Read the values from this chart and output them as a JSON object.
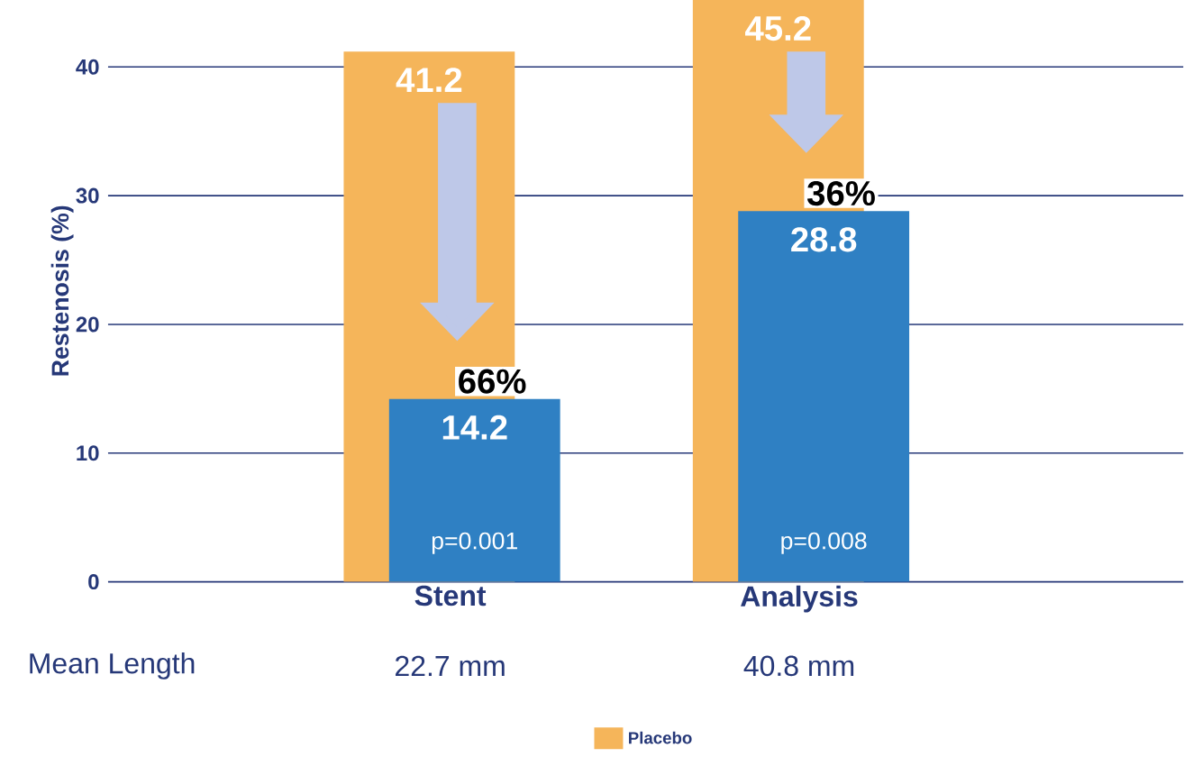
{
  "chart_data": {
    "type": "bar",
    "ylabel": "Restenosis (%)",
    "categories": [
      "Stent",
      "Analysis"
    ],
    "series": [
      {
        "name": "Placebo",
        "color": "#f5b55a",
        "values": [
          41.2,
          45.2
        ]
      },
      {
        "color": "#2f80c3",
        "values": [
          14.2,
          28.8
        ]
      }
    ],
    "ylim": [
      0,
      45.2
    ],
    "yticks": [
      0,
      10,
      20,
      30,
      40
    ],
    "grid": "y",
    "legend": "bottom",
    "data_labels": true,
    "annotations": [
      {
        "text": "66%",
        "x": "Stent",
        "y": 14.2
      },
      {
        "text": "36%",
        "x": "Analysis",
        "y": 28.8
      },
      "p=0.001",
      "p=0.008",
      "Mean Length",
      "22.7 mm",
      "40.8 mm"
    ]
  }
}
